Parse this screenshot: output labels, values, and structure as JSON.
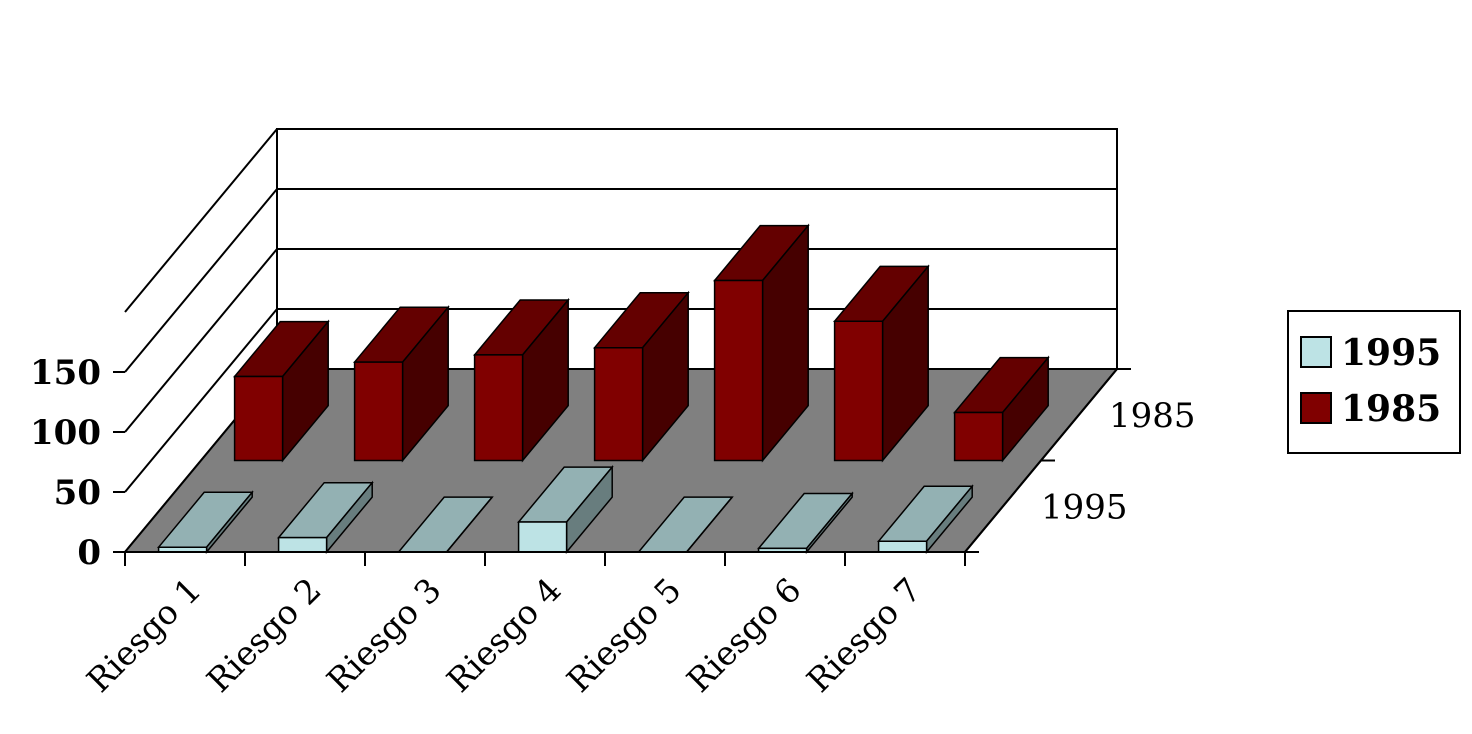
{
  "chart_data": {
    "type": "bar",
    "categories": [
      "Riesgo 1",
      "Riesgo 2",
      "Riesgo 3",
      "Riesgo 4",
      "Riesgo 5",
      "Riesgo 6",
      "Riesgo 7"
    ],
    "series": [
      {
        "name": "1995",
        "values": [
          4,
          12,
          0,
          25,
          0,
          3,
          9
        ],
        "color": "#bde3e5"
      },
      {
        "name": "1985",
        "values": [
          70,
          82,
          88,
          94,
          150,
          116,
          40
        ],
        "color": "#800000"
      }
    ],
    "depth_labels": [
      "1985",
      "1995"
    ],
    "y_ticks": [
      0,
      50,
      100,
      150
    ],
    "ylim": [
      0,
      200
    ],
    "grid": true,
    "legend_position": "right",
    "title": "",
    "xlabel": "",
    "ylabel": ""
  }
}
